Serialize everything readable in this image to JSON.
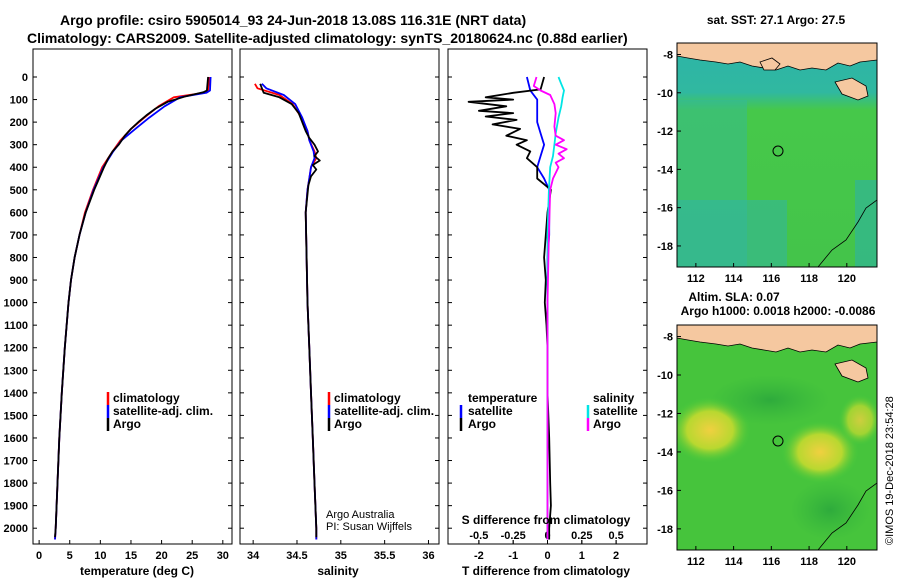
{
  "header": {
    "title_line1": "Argo profile: csiro 5905014_93 24-Jun-2018 13.08S 116.31E (NRT data)",
    "title_line2": "Climatology: CARS2009. Satellite-adjusted climatology: synTS_20180624.nc (0.88d earlier)"
  },
  "colors": {
    "climatology": "#ff0000",
    "satellite": "#0000ff",
    "argo": "#000000",
    "salinity_satellite": "#00e5e5",
    "salinity_argo": "#ff00ff",
    "land": "#f5c8a0",
    "sea_base": "#3cc83c"
  },
  "depth_axis": {
    "ticks": [
      0,
      100,
      200,
      300,
      400,
      500,
      600,
      700,
      800,
      900,
      1000,
      1100,
      1200,
      1300,
      1400,
      1500,
      1600,
      1700,
      1800,
      1900,
      2000
    ],
    "ylim": [
      0,
      2070
    ]
  },
  "legends": {
    "temperature_panel": [
      "climatology",
      "satellite-adj. clim.",
      "Argo"
    ],
    "salinity_panel": [
      "climatology",
      "satellite-adj. clim.",
      "Argo"
    ],
    "diff_temperature_header": "temperature",
    "diff_temperature_items": [
      "satellite",
      "Argo"
    ],
    "diff_salinity_header": "salinity",
    "diff_salinity_items": [
      "satellite",
      "Argo"
    ]
  },
  "credits": {
    "line1": "Argo Australia",
    "line2": "PI: Susan Wijffels"
  },
  "maps": {
    "sst_title": "sat. SST: 27.1 Argo: 27.5",
    "sla_title1": "Altim. SLA: 0.07",
    "sla_title2": "Argo h1000: 0.0018 h2000: -0.0086",
    "lat_ticks": [
      "-8",
      "-10",
      "-12",
      "-14",
      "-16",
      "-18"
    ],
    "lon_ticks": [
      "112",
      "114",
      "116",
      "118",
      "120"
    ],
    "lon_range": [
      111,
      121.6
    ],
    "lat_range": [
      -7.4,
      -19.1
    ],
    "float_position": {
      "lon": 116.31,
      "lat": -13.08
    }
  },
  "side_text": "©IMOS 19-Dec-2018 23:54:28",
  "chart_data": [
    {
      "type": "line",
      "panel": "temperature",
      "xlabel": "temperature (deg C)",
      "ylabel": "",
      "xlim": [
        -1,
        31.5
      ],
      "ylim": [
        0,
        2070
      ],
      "x_ticks": [
        0,
        5,
        10,
        15,
        20,
        25,
        30
      ],
      "series": [
        {
          "name": "climatology",
          "depth": [
            0,
            60,
            70,
            90,
            130,
            180,
            230,
            280,
            330,
            400,
            500,
            600,
            700,
            800,
            900,
            1000,
            1200,
            1400,
            1600,
            1800,
            2000,
            2050
          ],
          "values": [
            27.8,
            27.6,
            27.0,
            22.0,
            19.5,
            17.2,
            15.0,
            13.3,
            12.0,
            10.3,
            8.8,
            7.5,
            6.6,
            5.8,
            5.2,
            4.8,
            4.2,
            3.7,
            3.3,
            3.0,
            2.7,
            2.6
          ]
        },
        {
          "name": "satellite-adj. clim.",
          "depth": [
            0,
            60,
            70,
            90,
            130,
            180,
            230,
            280,
            330,
            400,
            500,
            600,
            700,
            800,
            900,
            1000,
            1200,
            1400,
            1600,
            1800,
            2000,
            2050
          ],
          "values": [
            28.0,
            27.9,
            27.3,
            23.0,
            20.5,
            18.0,
            15.7,
            13.5,
            12.1,
            10.5,
            8.9,
            7.6,
            6.6,
            5.8,
            5.2,
            4.8,
            4.2,
            3.7,
            3.3,
            3.0,
            2.7,
            2.6
          ]
        },
        {
          "name": "Argo",
          "depth": [
            0,
            60,
            68,
            85,
            110,
            140,
            170,
            200,
            230,
            260,
            300,
            330,
            360,
            400,
            450,
            500,
            600,
            700,
            800,
            900,
            1000,
            1200,
            1400,
            1600,
            1800,
            2000,
            2040
          ],
          "values": [
            27.6,
            27.4,
            26.8,
            24.0,
            21.0,
            19.0,
            17.5,
            16.2,
            15.0,
            14.0,
            13.0,
            12.0,
            11.3,
            10.6,
            9.8,
            9.0,
            7.6,
            6.6,
            5.8,
            5.2,
            4.8,
            4.2,
            3.7,
            3.3,
            3.0,
            2.7,
            2.6
          ]
        }
      ]
    },
    {
      "type": "line",
      "panel": "salinity",
      "xlabel": "salinity",
      "ylabel": "",
      "xlim": [
        33.85,
        36.12
      ],
      "ylim": [
        0,
        2070
      ],
      "x_ticks": [
        34,
        34.5,
        35,
        35.5,
        36
      ],
      "x_tick_labels": [
        "34",
        "34.5",
        "35",
        "35.5",
        "36"
      ],
      "series": [
        {
          "name": "climatology",
          "depth": [
            30,
            50,
            80,
            120,
            180,
            240,
            280,
            330,
            360,
            400,
            450,
            500,
            600,
            800,
            1000,
            1200,
            1400,
            1600,
            1800,
            2000,
            2050
          ],
          "values": [
            34.02,
            34.05,
            34.3,
            34.45,
            34.55,
            34.62,
            34.64,
            34.7,
            34.72,
            34.66,
            34.64,
            34.62,
            34.6,
            34.61,
            34.62,
            34.64,
            34.66,
            34.68,
            34.7,
            34.72,
            34.72
          ]
        },
        {
          "name": "satellite-adj. clim.",
          "depth": [
            30,
            50,
            80,
            120,
            180,
            240,
            280,
            330,
            360,
            400,
            450,
            500,
            600,
            800,
            1000,
            1200,
            1400,
            1600,
            1800,
            2000,
            2050
          ],
          "values": [
            34.1,
            34.15,
            34.35,
            34.48,
            34.56,
            34.62,
            34.64,
            34.69,
            34.7,
            34.66,
            34.64,
            34.62,
            34.6,
            34.61,
            34.62,
            34.64,
            34.66,
            34.68,
            34.7,
            34.72,
            34.72
          ]
        },
        {
          "name": "Argo",
          "depth": [
            30,
            50,
            70,
            90,
            120,
            160,
            200,
            240,
            270,
            300,
            330,
            350,
            370,
            390,
            410,
            440,
            480,
            520,
            600,
            800,
            1000,
            1200,
            1400,
            1600,
            1800,
            2000,
            2040
          ],
          "values": [
            34.08,
            34.1,
            34.12,
            34.3,
            34.44,
            34.52,
            34.56,
            34.6,
            34.64,
            34.7,
            34.74,
            34.7,
            34.76,
            34.68,
            34.72,
            34.66,
            34.63,
            34.62,
            34.6,
            34.61,
            34.62,
            34.64,
            34.66,
            34.68,
            34.7,
            34.72,
            34.72
          ]
        }
      ]
    },
    {
      "type": "line",
      "panel": "difference",
      "xlabel": "T difference from climatology",
      "top_axis_label": "S difference from climatology",
      "xlim": [
        -2.9,
        2.9
      ],
      "ylim": [
        0,
        2070
      ],
      "x_ticks": [
        -2,
        -1,
        0,
        1,
        2
      ],
      "s_ticks": [
        -0.5,
        -0.25,
        0,
        0.25,
        0.5
      ],
      "s_tick_labels": [
        "-0.5",
        "-0.25",
        "0",
        "0.25",
        "0.5"
      ],
      "s_xlim": [
        -0.725,
        0.725
      ],
      "series": [
        {
          "name": "temperature satellite",
          "depth": [
            0,
            60,
            100,
            150,
            200,
            250,
            300,
            350,
            400,
            450,
            500,
            600,
            700,
            800,
            1000,
            1200,
            1400,
            1600,
            1800,
            2000,
            2050
          ],
          "values": [
            -0.6,
            -0.5,
            -0.3,
            -0.3,
            -0.3,
            -0.2,
            -0.1,
            -0.2,
            -0.3,
            -0.1,
            0.05,
            0.05,
            0.05,
            0.0,
            0.0,
            0.0,
            0.0,
            0.0,
            0.0,
            0.0,
            0.0
          ]
        },
        {
          "name": "temperature Argo",
          "depth": [
            0,
            55,
            70,
            90,
            100,
            110,
            130,
            150,
            160,
            175,
            190,
            210,
            230,
            260,
            280,
            300,
            330,
            360,
            400,
            450,
            500,
            600,
            700,
            800,
            900,
            1000,
            1100,
            1200,
            1400,
            1600,
            1800,
            1900,
            2000,
            2050
          ],
          "values": [
            -0.1,
            -0.2,
            -1.0,
            -1.8,
            -1.0,
            -2.3,
            -1.2,
            -2.0,
            -1.0,
            -1.8,
            -0.9,
            -1.6,
            -0.8,
            -1.2,
            -0.6,
            -0.9,
            -0.5,
            -0.6,
            -0.3,
            -0.3,
            0.1,
            0.0,
            -0.05,
            -0.1,
            -0.05,
            -0.08,
            -0.03,
            0.0,
            0.0,
            0.05,
            0.08,
            0.1,
            0.05,
            0.05
          ]
        },
        {
          "name": "salinity satellite",
          "depth": [
            0,
            30,
            60,
            90,
            130,
            180,
            250,
            300,
            350,
            400,
            500,
            700,
            1000,
            1500,
            2000,
            2050
          ],
          "values": [
            0.08,
            0.1,
            0.12,
            0.11,
            0.1,
            0.08,
            0.06,
            0.05,
            0.04,
            0.02,
            0.01,
            0.0,
            0.0,
            0.0,
            0.0,
            0.0
          ]
        },
        {
          "name": "salinity Argo",
          "depth": [
            0,
            40,
            60,
            80,
            120,
            160,
            220,
            260,
            280,
            300,
            320,
            340,
            360,
            380,
            400,
            450,
            500,
            700,
            1000,
            1500,
            2000,
            2050
          ],
          "values": [
            -0.08,
            -0.1,
            -0.05,
            0.02,
            0.05,
            0.06,
            0.05,
            0.06,
            0.12,
            0.06,
            0.14,
            0.08,
            0.12,
            0.06,
            0.08,
            0.04,
            0.02,
            0.01,
            0.0,
            0.0,
            0.0,
            0.0
          ]
        }
      ]
    }
  ]
}
